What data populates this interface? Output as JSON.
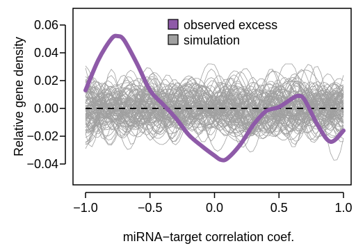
{
  "chart_data": {
    "type": "line",
    "xlabel": "miRNA−target correlation coef.",
    "ylabel": "Relative gene density",
    "xlim": [
      -1.0,
      1.0
    ],
    "ylim": [
      -0.055,
      0.072
    ],
    "x_ticks": [
      -1.0,
      -0.5,
      0.0,
      0.5,
      1.0
    ],
    "x_tick_labels": [
      "−1.0",
      "−0.5",
      "0.0",
      "0.5",
      "1.0"
    ],
    "y_ticks": [
      -0.04,
      -0.02,
      0.0,
      0.02,
      0.04,
      0.06
    ],
    "y_tick_labels": [
      "−0.04",
      "−0.02",
      "0.00",
      "0.02",
      "0.04",
      "0.06"
    ],
    "reference_line": {
      "y": 0.0,
      "style": "dashed",
      "color": "#000000"
    },
    "legend": {
      "placement": "top-center",
      "entries": [
        {
          "label": "observed excess",
          "color": "#8e5aa8"
        },
        {
          "label": "simulation",
          "color": "#a0a0a0"
        }
      ]
    },
    "series": [
      {
        "name": "observed excess",
        "color": "#8e5aa8",
        "x": [
          -1.0,
          -0.9,
          -0.8,
          -0.75,
          -0.7,
          -0.6,
          -0.5,
          -0.4,
          -0.3,
          -0.2,
          -0.1,
          0.0,
          0.05,
          0.1,
          0.2,
          0.3,
          0.4,
          0.5,
          0.6,
          0.65,
          0.7,
          0.8,
          0.9,
          1.0
        ],
        "y": [
          0.013,
          0.035,
          0.05,
          0.052,
          0.049,
          0.032,
          0.013,
          0.003,
          -0.007,
          -0.019,
          -0.027,
          -0.034,
          -0.037,
          -0.036,
          -0.026,
          -0.012,
          -0.002,
          0.001,
          0.007,
          0.009,
          0.006,
          -0.012,
          -0.024,
          -0.016
        ]
      }
    ],
    "simulation": {
      "name": "simulation",
      "color": "#a0a0a0",
      "count": 100,
      "envelope": [
        -0.038,
        0.032
      ]
    }
  }
}
